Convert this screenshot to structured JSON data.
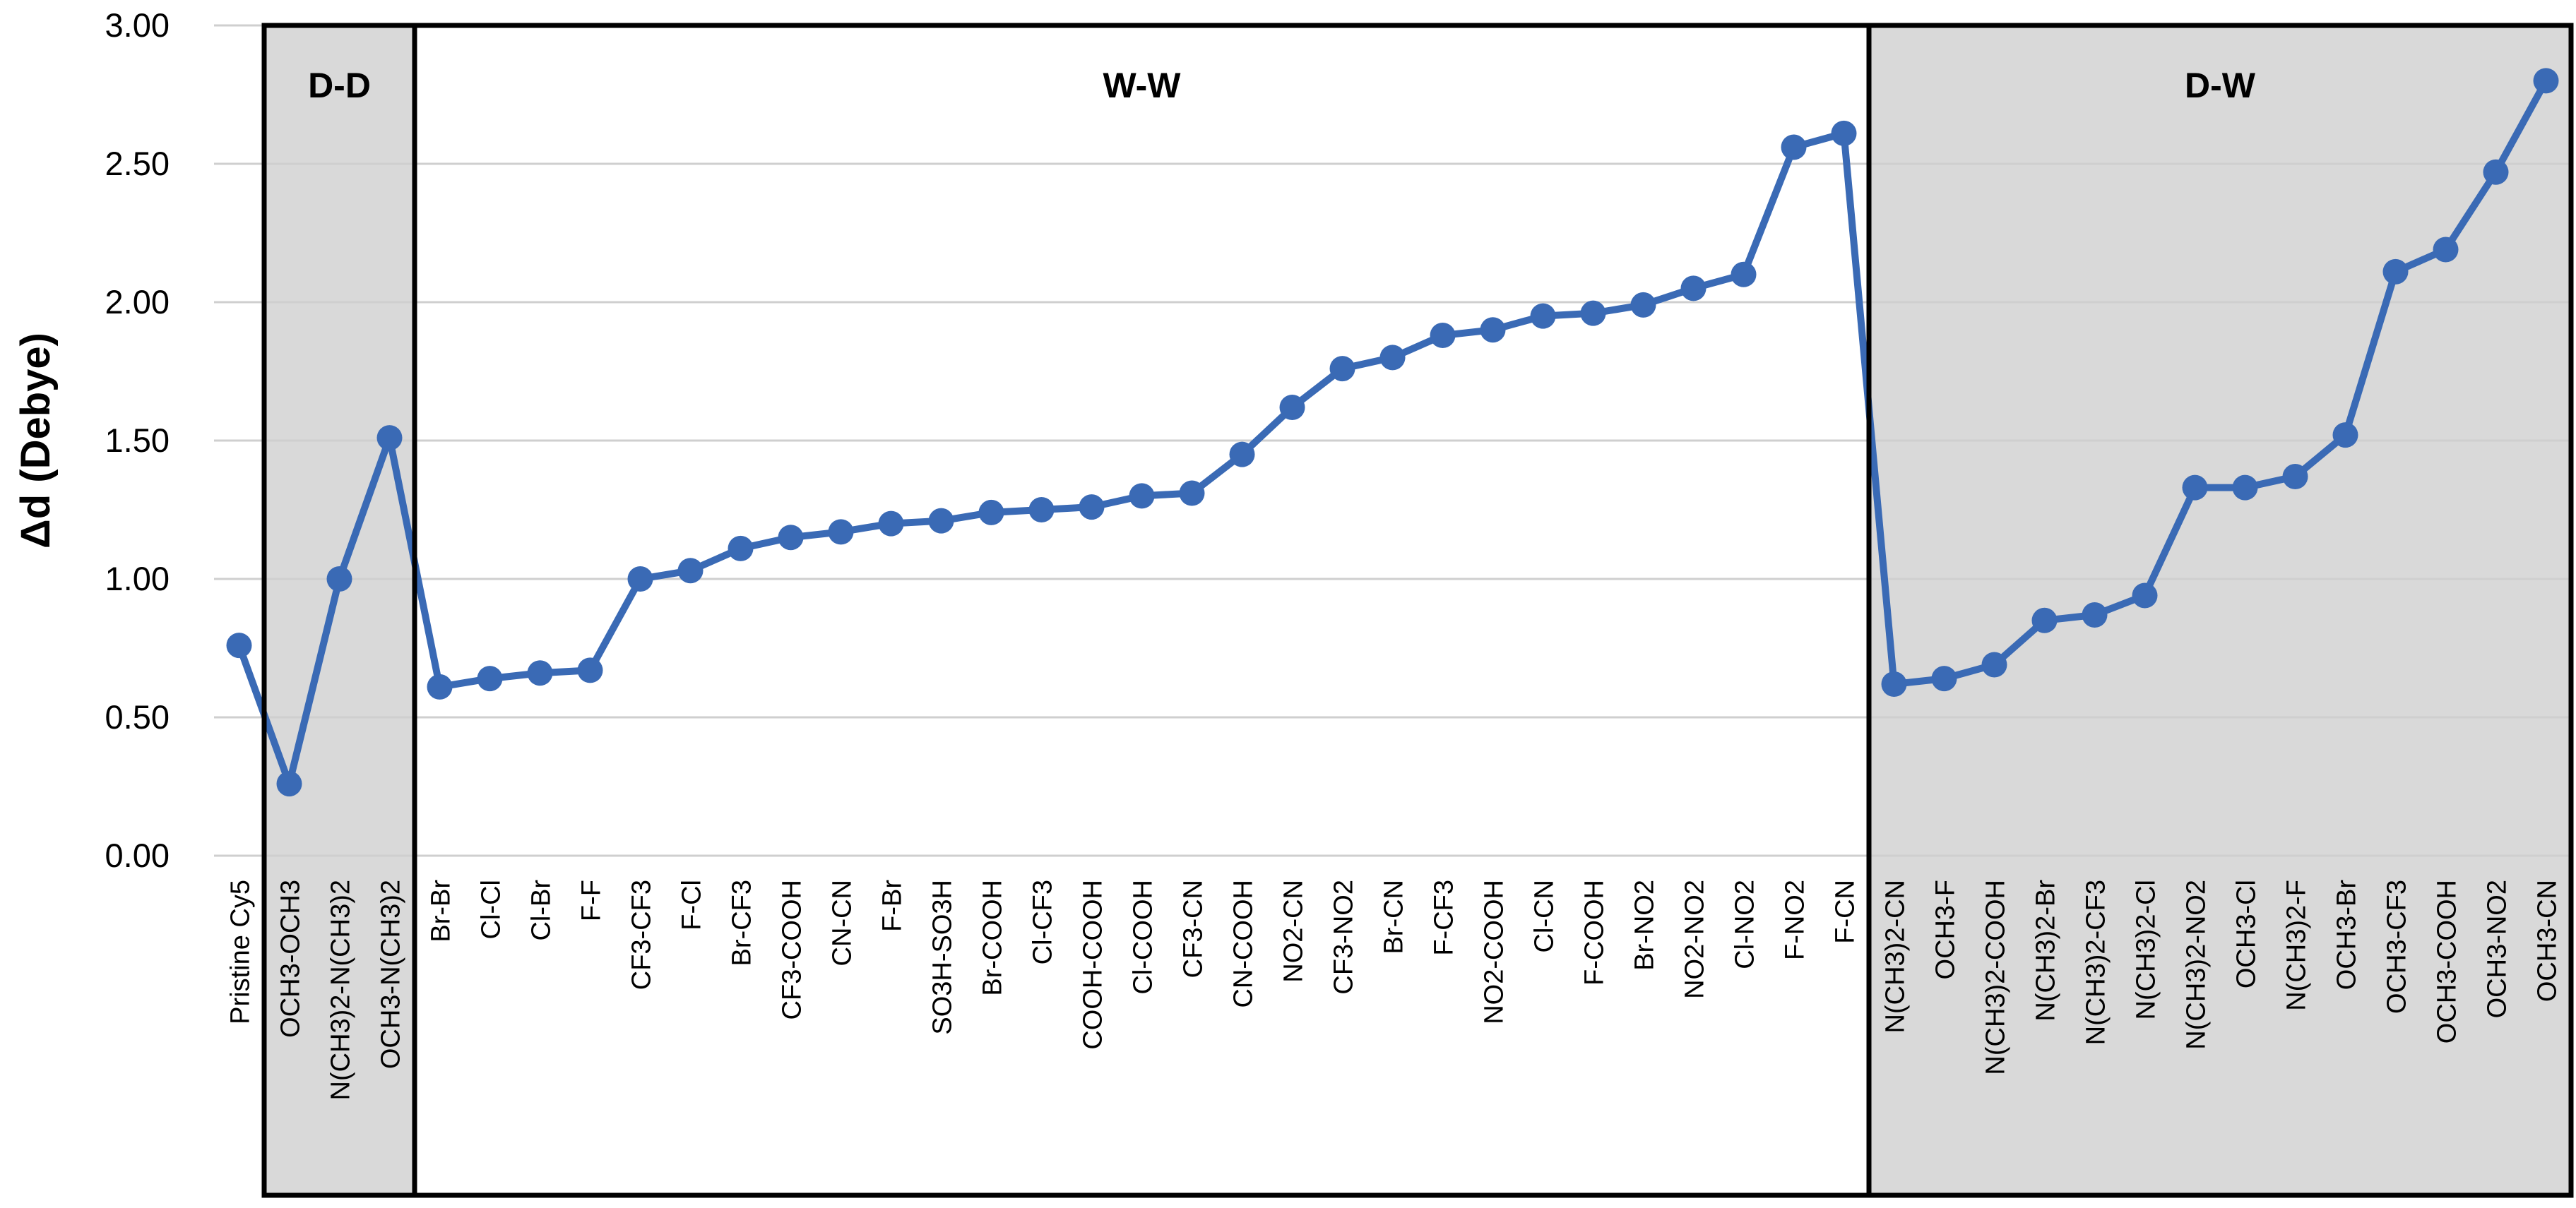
{
  "chart_data": {
    "type": "line",
    "title": "",
    "ylabel": "Δd (Debye)",
    "xlabel": "",
    "ylim": [
      0.0,
      3.0
    ],
    "yaxis": {
      "min": 0.0,
      "max": 3.0,
      "step": 0.5
    },
    "yticks": [
      "3.00",
      "2.50",
      "2.00",
      "1.50",
      "1.00",
      "0.50",
      "0.00"
    ],
    "grid": "horizontal",
    "legend": "none",
    "categories": [
      "Pristine Cy5",
      "OCH3-OCH3",
      "N(CH3)2-N(CH3)2",
      "OCH3-N(CH3)2",
      "Br-Br",
      "Cl-Cl",
      "Cl-Br",
      "F-F",
      "CF3-CF3",
      "F-Cl",
      "Br-CF3",
      "CF3-COOH",
      "CN-CN",
      "F-Br",
      "SO3H-SO3H",
      "Br-COOH",
      "Cl-CF3",
      "COOH-COOH",
      "Cl-COOH",
      "CF3-CN",
      "CN-COOH",
      "NO2-CN",
      "CF3-NO2",
      "Br-CN",
      "F-CF3",
      "NO2-COOH",
      "Cl-CN",
      "F-COOH",
      "Br-NO2",
      "NO2-NO2",
      "Cl-NO2",
      "F-NO2",
      "F-CN",
      "N(CH3)2-CN",
      "OCH3-F",
      "N(CH3)2-COOH",
      "N(CH3)2-Br",
      "N(CH3)2-CF3",
      "N(CH3)2-Cl",
      "N(CH3)2-NO2",
      "OCH3-Cl",
      "N(CH3)2-F",
      "OCH3-Br",
      "OCH3-CF3",
      "OCH3-COOH",
      "OCH3-NO2",
      "OCH3-CN"
    ],
    "series": [
      {
        "name": "Δd",
        "values": [
          0.76,
          0.26,
          1.0,
          1.51,
          0.61,
          0.64,
          0.66,
          0.67,
          1.0,
          1.03,
          1.11,
          1.15,
          1.17,
          1.2,
          1.21,
          1.24,
          1.25,
          1.26,
          1.3,
          1.31,
          1.45,
          1.62,
          1.76,
          1.8,
          1.88,
          1.9,
          1.95,
          1.96,
          1.99,
          2.05,
          2.1,
          2.56,
          2.61,
          0.62,
          0.64,
          0.69,
          0.85,
          0.87,
          0.94,
          1.33,
          1.33,
          1.37,
          1.52,
          2.11,
          2.19,
          2.47,
          2.8
        ]
      }
    ],
    "sections": [
      {
        "label": "D-D",
        "from": 1,
        "to": 4,
        "shaded": true
      },
      {
        "label": "W-W",
        "from": 4,
        "to": 33,
        "shaded": false
      },
      {
        "label": "D-W",
        "from": 33,
        "to": 47,
        "shaded": true
      }
    ],
    "colors": {
      "line": "#3a6ab5",
      "marker": "#3a6ab5",
      "section_fill": "#d9d9d9",
      "section_border": "#000000",
      "gridline": "#cfcfcf",
      "background": "#ffffff"
    }
  }
}
